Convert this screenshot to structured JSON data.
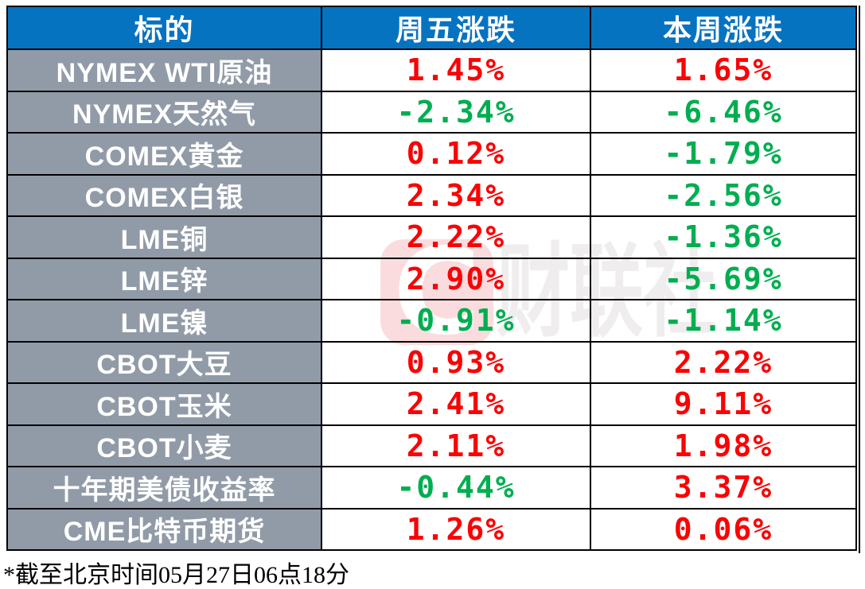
{
  "chart_data": {
    "type": "table",
    "columns": [
      "标的",
      "周五涨跌",
      "本周涨跌"
    ],
    "rows": [
      {
        "label": "NYMEX WTI原油",
        "friday": "1.45%",
        "friday_dir": "up",
        "week": "1.65%",
        "week_dir": "up"
      },
      {
        "label": "NYMEX天然气",
        "friday": "-2.34%",
        "friday_dir": "down",
        "week": "-6.46%",
        "week_dir": "down"
      },
      {
        "label": "COMEX黄金",
        "friday": "0.12%",
        "friday_dir": "up",
        "week": "-1.79%",
        "week_dir": "down"
      },
      {
        "label": "COMEX白银",
        "friday": "2.34%",
        "friday_dir": "up",
        "week": "-2.56%",
        "week_dir": "down"
      },
      {
        "label": "LME铜",
        "friday": "2.22%",
        "friday_dir": "up",
        "week": "-1.36%",
        "week_dir": "down"
      },
      {
        "label": "LME锌",
        "friday": "2.90%",
        "friday_dir": "up",
        "week": "-5.69%",
        "week_dir": "down"
      },
      {
        "label": "LME镍",
        "friday": "-0.91%",
        "friday_dir": "down",
        "week": "-1.14%",
        "week_dir": "down"
      },
      {
        "label": "CBOT大豆",
        "friday": "0.93%",
        "friday_dir": "up",
        "week": "2.22%",
        "week_dir": "up"
      },
      {
        "label": "CBOT玉米",
        "friday": "2.41%",
        "friday_dir": "up",
        "week": "9.11%",
        "week_dir": "up"
      },
      {
        "label": "CBOT小麦",
        "friday": "2.11%",
        "friday_dir": "up",
        "week": "1.98%",
        "week_dir": "up"
      },
      {
        "label": "十年期美债收益率",
        "friday": "-0.44%",
        "friday_dir": "down",
        "week": "3.37%",
        "week_dir": "up"
      },
      {
        "label": "CME比特币期货",
        "friday": "1.26%",
        "friday_dir": "up",
        "week": "0.06%",
        "week_dir": "up"
      }
    ],
    "footnote": "*截至北京时间05月27日06点18分",
    "colors": {
      "up": "#fb0204",
      "down": "#00ae50",
      "header_bg": "#0673c1",
      "row_label_bg": "#919ba8"
    },
    "layout": {
      "grid": "on",
      "legend": "none"
    }
  },
  "watermark": {
    "logo_letter": "C",
    "brand_text": "财联社"
  }
}
